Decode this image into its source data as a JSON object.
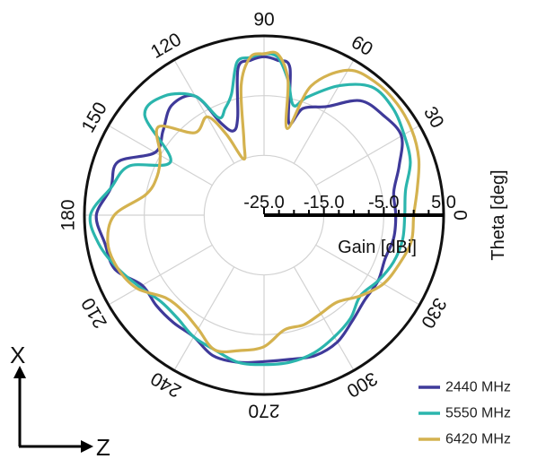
{
  "chart_data": {
    "type": "polar-line",
    "theta_label": "Theta [deg]",
    "r_label": "Gain [dBi]",
    "theta_ticks": [
      "0",
      "30",
      "60",
      "90",
      "120",
      "150",
      "180",
      "210",
      "240",
      "270",
      "300",
      "330"
    ],
    "r_ticks": [
      "-25.0",
      "-15.0",
      "-5.0",
      "5.0"
    ],
    "r_range": [
      -25,
      5
    ],
    "grid": true,
    "legend_position": "bottom-right",
    "series": [
      {
        "name": "2440 MHz",
        "color": "#3f3a9a",
        "theta": [
          0,
          10,
          20,
          30,
          40,
          50,
          60,
          70,
          75,
          80,
          85,
          90,
          95,
          100,
          105,
          110,
          115,
          120,
          130,
          140,
          150,
          160,
          170,
          180,
          190,
          200,
          210,
          220,
          230,
          240,
          250,
          260,
          270,
          280,
          290,
          300,
          310,
          320,
          330,
          340,
          350,
          360
        ],
        "r": [
          -3,
          -3,
          -1,
          1.5,
          1,
          0,
          -4,
          -6,
          -9,
          0,
          1,
          1.5,
          1,
          0,
          -8,
          -10,
          -8,
          -2,
          -1,
          -3,
          -4,
          1,
          1,
          3,
          2,
          1.5,
          -1.5,
          -1.5,
          -1.5,
          -1.5,
          0,
          0,
          -0.5,
          -0.5,
          0,
          -0.5,
          -2,
          -3,
          -3,
          -3.5,
          -3,
          -3
        ]
      },
      {
        "name": "5550 MHz",
        "color": "#2bb5ad",
        "theta": [
          0,
          10,
          20,
          30,
          40,
          50,
          60,
          70,
          75,
          80,
          85,
          90,
          95,
          100,
          105,
          110,
          115,
          120,
          130,
          140,
          150,
          160,
          170,
          180,
          190,
          200,
          210,
          220,
          230,
          240,
          250,
          260,
          270,
          280,
          290,
          300,
          310,
          320,
          330,
          340,
          350,
          360
        ],
        "r": [
          -1.5,
          -1,
          1,
          2,
          3,
          3,
          0,
          -4,
          -6,
          -2,
          1.5,
          2,
          1.5,
          1,
          -4,
          -6,
          -7,
          -2,
          1,
          1,
          -7,
          -1,
          1,
          4,
          3,
          1,
          -1,
          -2.5,
          -2.5,
          -1.5,
          -1,
          0,
          0,
          0,
          -0.5,
          -1.5,
          -2.5,
          -4,
          -3,
          -2,
          -1.5,
          -1.5
        ]
      },
      {
        "name": "6420 MHz",
        "color": "#d4b24f",
        "theta": [
          0,
          10,
          20,
          30,
          40,
          50,
          60,
          70,
          75,
          80,
          85,
          90,
          95,
          100,
          105,
          110,
          115,
          120,
          130,
          140,
          150,
          160,
          170,
          180,
          190,
          200,
          210,
          220,
          230,
          240,
          250,
          260,
          270,
          280,
          290,
          300,
          310,
          320,
          330,
          340,
          350,
          360
        ],
        "r": [
          0,
          1,
          2.5,
          3.5,
          4,
          4,
          3,
          -2,
          -10,
          -2,
          2,
          2,
          1.5,
          -3,
          -12,
          -15,
          -10,
          -6,
          -7,
          -2,
          -5,
          -6,
          -5,
          0,
          1.5,
          1,
          -0.5,
          -3.5,
          -4,
          -3,
          -1,
          -2,
          -3,
          -5.5,
          -5.5,
          -6,
          -6,
          -4,
          -2,
          -1,
          0,
          0
        ]
      }
    ]
  },
  "coord_axes": {
    "vertical": "X",
    "horizontal": "Z"
  }
}
